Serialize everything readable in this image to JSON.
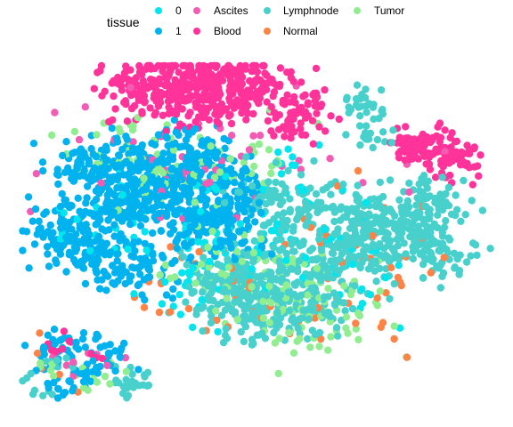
{
  "chart_data": {
    "type": "scatter",
    "title": "",
    "xlabel": "",
    "ylabel": "",
    "grid": false,
    "axes_visible": false,
    "legend": {
      "title": "tissue",
      "placement": "top",
      "entries": [
        {
          "label": "0",
          "color": "#00E5EE"
        },
        {
          "label": "1",
          "color": "#00B2EE"
        },
        {
          "label": "Ascites",
          "color": "#F25CB4"
        },
        {
          "label": "Blood",
          "color": "#FF3399"
        },
        {
          "label": "Lymphnode",
          "color": "#48D1CC"
        },
        {
          "label": "Normal",
          "color": "#FF8247"
        },
        {
          "label": "Tumor",
          "color": "#90EE90"
        }
      ]
    },
    "xlim": [
      0,
      100
    ],
    "ylim": [
      0,
      100
    ],
    "clusters": [
      {
        "name": "Blood",
        "points": [
          [
            24,
            93
          ],
          [
            30,
            95
          ],
          [
            38,
            96
          ],
          [
            45,
            94
          ],
          [
            52,
            92
          ],
          [
            58,
            86
          ],
          [
            35,
            89
          ],
          [
            42,
            90
          ]
        ],
        "spread": 4.0,
        "count": 500
      },
      {
        "name": "Blood",
        "points": [
          [
            82,
            76
          ],
          [
            87,
            77
          ],
          [
            92,
            73
          ]
        ],
        "spread": 2.5,
        "count": 130
      },
      {
        "name": "1",
        "points": [
          [
            15,
            70
          ],
          [
            25,
            73
          ],
          [
            35,
            72
          ],
          [
            22,
            60
          ],
          [
            32,
            63
          ],
          [
            15,
            48
          ],
          [
            25,
            42
          ],
          [
            42,
            65
          ],
          [
            45,
            56
          ],
          [
            10,
            52
          ],
          [
            38,
            54
          ]
        ],
        "spread": 4.5,
        "count": 900
      },
      {
        "name": "Lymphnode",
        "points": [
          [
            45,
            40
          ],
          [
            55,
            42
          ],
          [
            65,
            44
          ],
          [
            55,
            60
          ],
          [
            68,
            58
          ],
          [
            73,
            50
          ],
          [
            80,
            52
          ],
          [
            62,
            32
          ],
          [
            50,
            30
          ],
          [
            85,
            60
          ],
          [
            88,
            48
          ],
          [
            42,
            36
          ]
        ],
        "spread": 4.5,
        "count": 900
      },
      {
        "name": "Lymphnode",
        "points": [
          [
            72,
            88
          ],
          [
            75,
            80
          ]
        ],
        "spread": 2.2,
        "count": 45
      },
      {
        "name": "Tumor",
        "points": [
          [
            48,
            38
          ],
          [
            42,
            40
          ],
          [
            55,
            30
          ],
          [
            60,
            35
          ],
          [
            48,
            70
          ],
          [
            30,
            68
          ],
          [
            65,
            28
          ],
          [
            22,
            75
          ]
        ],
        "spread": 6.0,
        "count": 220
      },
      {
        "name": "0",
        "points": [
          [
            40,
            58
          ],
          [
            50,
            52
          ],
          [
            55,
            65
          ],
          [
            38,
            48
          ],
          [
            62,
            52
          ],
          [
            70,
            40
          ],
          [
            35,
            38
          ],
          [
            20,
            55
          ]
        ],
        "spread": 6.5,
        "count": 140
      },
      {
        "name": "Normal",
        "points": [
          [
            62,
            48
          ],
          [
            70,
            35
          ],
          [
            40,
            35
          ],
          [
            65,
            55
          ],
          [
            80,
            44
          ],
          [
            45,
            28
          ],
          [
            35,
            43
          ]
        ],
        "spread": 7.0,
        "count": 70
      },
      {
        "name": "Ascites",
        "points": [
          [
            35,
            82
          ],
          [
            15,
            72
          ],
          [
            40,
            65
          ],
          [
            55,
            72
          ],
          [
            70,
            70
          ]
        ],
        "spread": 8.0,
        "count": 45
      },
      {
        "name": "1",
        "points": [
          [
            8,
            18
          ],
          [
            14,
            14
          ],
          [
            20,
            17
          ],
          [
            10,
            10
          ],
          [
            16,
            22
          ]
        ],
        "spread": 2.8,
        "count": 90
      },
      {
        "name": "Lymphnode",
        "points": [
          [
            5,
            10
          ],
          [
            22,
            10
          ],
          [
            26,
            12
          ],
          [
            8,
            16
          ]
        ],
        "spread": 2.0,
        "count": 40
      },
      {
        "name": "Tumor",
        "points": [
          [
            14,
            10
          ],
          [
            5,
            14
          ],
          [
            20,
            12
          ]
        ],
        "spread": 2.2,
        "count": 15
      },
      {
        "name": "Blood",
        "points": [
          [
            15,
            18
          ],
          [
            10,
            20
          ]
        ],
        "spread": 2.2,
        "count": 10
      },
      {
        "name": "Normal",
        "points": [
          [
            6,
            18
          ],
          [
            12,
            8
          ]
        ],
        "spread": 2.2,
        "count": 5
      },
      {
        "name": "Ascites",
        "points": [
          [
            18,
            16
          ],
          [
            10,
            15
          ]
        ],
        "spread": 2.5,
        "count": 8
      }
    ]
  }
}
